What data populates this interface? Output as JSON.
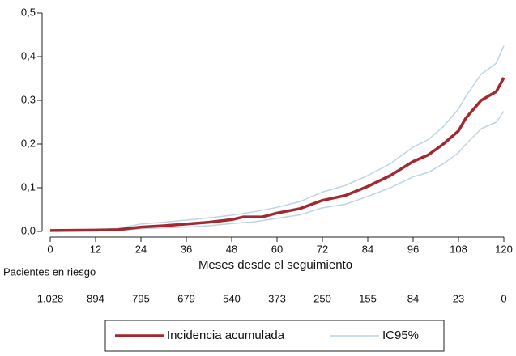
{
  "chart_data": {
    "type": "line",
    "x_label": "Meses desde el seguimiento",
    "xlim": [
      0,
      120
    ],
    "xticks": [
      0,
      12,
      24,
      36,
      48,
      60,
      72,
      84,
      96,
      108,
      120
    ],
    "ylim": [
      0,
      0.5
    ],
    "yticks": [
      {
        "value": 0,
        "label": "0,0"
      },
      {
        "value": 0.1,
        "label": "0,1"
      },
      {
        "value": 0.2,
        "label": "0,2"
      },
      {
        "value": 0.3,
        "label": "0,3"
      },
      {
        "value": 0.4,
        "label": "0,4"
      },
      {
        "value": 0.5,
        "label": "0,5"
      }
    ],
    "series": [
      {
        "name": "Incidencia acumulada",
        "color": "#a3282f",
        "x": [
          0,
          12,
          18,
          24,
          30,
          36,
          42,
          48,
          51,
          56,
          60,
          66,
          72,
          78,
          84,
          90,
          96,
          100,
          104,
          108,
          110,
          114,
          118,
          120
        ],
        "values": [
          0.002,
          0.003,
          0.004,
          0.01,
          0.013,
          0.017,
          0.021,
          0.027,
          0.033,
          0.033,
          0.042,
          0.052,
          0.071,
          0.082,
          0.103,
          0.128,
          0.16,
          0.175,
          0.2,
          0.23,
          0.26,
          0.3,
          0.32,
          0.352
        ]
      },
      {
        "name": "IC95%",
        "color": "#bcd4e6",
        "x": [
          0,
          12,
          18,
          24,
          30,
          36,
          42,
          48,
          54,
          60,
          66,
          72,
          78,
          84,
          90,
          96,
          100,
          104,
          108,
          110,
          114,
          118,
          120
        ],
        "values": [
          0.002,
          0.004,
          0.007,
          0.017,
          0.021,
          0.026,
          0.031,
          0.037,
          0.045,
          0.055,
          0.068,
          0.09,
          0.105,
          0.128,
          0.155,
          0.193,
          0.21,
          0.24,
          0.28,
          0.31,
          0.36,
          0.385,
          0.425
        ]
      },
      {
        "color": "#bcd4e6",
        "x": [
          0,
          12,
          18,
          24,
          30,
          36,
          42,
          48,
          54,
          60,
          66,
          72,
          78,
          84,
          90,
          96,
          100,
          104,
          108,
          110,
          114,
          118,
          120
        ],
        "values": [
          0.001,
          0.002,
          0.002,
          0.006,
          0.008,
          0.01,
          0.013,
          0.018,
          0.022,
          0.03,
          0.038,
          0.054,
          0.062,
          0.08,
          0.1,
          0.125,
          0.135,
          0.155,
          0.18,
          0.2,
          0.235,
          0.25,
          0.275
        ]
      }
    ],
    "risk_table": {
      "title": "Pacientes en riesgo",
      "values": [
        {
          "value": 1028,
          "label": "1.028"
        },
        894,
        795,
        679,
        540,
        373,
        250,
        155,
        84,
        23,
        0
      ]
    }
  }
}
